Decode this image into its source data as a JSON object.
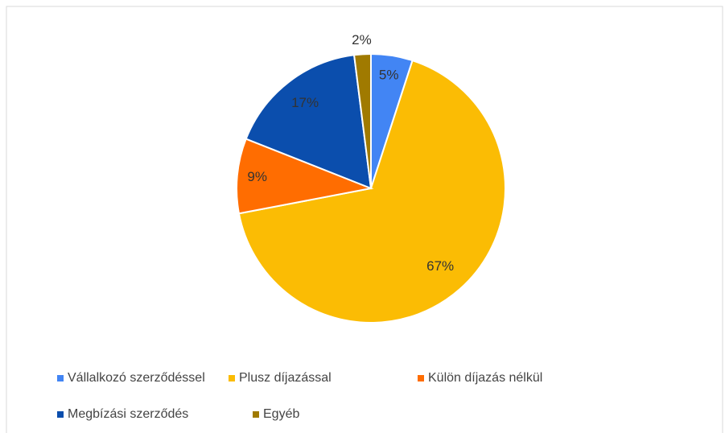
{
  "chart_data": {
    "type": "pie",
    "categories": [
      "Vállalkozó szerződéssel",
      "Plusz díjazással",
      "Külön díjazás nélkül",
      "Megbízási szerződés",
      "Egyéb"
    ],
    "values": [
      5,
      67,
      9,
      17,
      2
    ],
    "value_labels": [
      "5%",
      "67%",
      "9%",
      "17%",
      "2%"
    ],
    "colors": [
      "#4285f4",
      "#fbbc04",
      "#ff6d01",
      "#0b4ead",
      "#a07a00"
    ],
    "legend": "bottom"
  }
}
